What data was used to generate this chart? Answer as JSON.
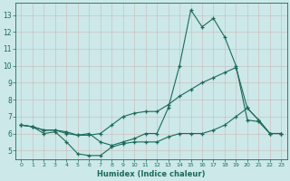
{
  "xlabel": "Humidex (Indice chaleur)",
  "xlim": [
    -0.5,
    23.5
  ],
  "ylim": [
    4.5,
    13.7
  ],
  "yticks": [
    5,
    6,
    7,
    8,
    9,
    10,
    11,
    12,
    13
  ],
  "xticks": [
    0,
    1,
    2,
    3,
    4,
    5,
    6,
    7,
    8,
    9,
    10,
    11,
    12,
    13,
    14,
    15,
    16,
    17,
    18,
    19,
    20,
    21,
    22,
    23
  ],
  "bg_color": "#cce8e8",
  "grid_color": "#bbcccc",
  "line_color": "#1a6b5a",
  "line1_x": [
    0,
    1,
    2,
    3,
    4,
    5,
    6,
    7,
    8,
    9,
    10,
    11,
    12,
    13,
    14,
    15,
    16,
    17,
    18,
    19,
    20,
    21,
    22,
    23
  ],
  "line1_y": [
    6.5,
    6.4,
    6.2,
    6.2,
    6.1,
    5.9,
    6.0,
    5.5,
    5.3,
    5.5,
    5.7,
    6.0,
    6.0,
    7.5,
    10.0,
    13.3,
    12.3,
    12.8,
    11.7,
    10.0,
    6.8,
    6.7,
    6.0,
    6.0
  ],
  "line2_x": [
    0,
    1,
    2,
    3,
    4,
    5,
    6,
    7,
    8,
    9,
    10,
    11,
    12,
    13,
    14,
    15,
    16,
    17,
    18,
    19,
    20,
    21,
    22,
    23
  ],
  "line2_y": [
    6.5,
    6.4,
    6.2,
    6.2,
    6.0,
    5.9,
    5.9,
    6.0,
    6.5,
    7.0,
    7.2,
    7.3,
    7.3,
    7.7,
    8.2,
    8.6,
    9.0,
    9.3,
    9.6,
    9.9,
    7.5,
    6.8,
    6.0,
    6.0
  ],
  "line3_x": [
    0,
    1,
    2,
    3,
    4,
    5,
    6,
    7,
    8,
    9,
    10,
    11,
    12,
    13,
    14,
    15,
    16,
    17,
    18,
    19,
    20,
    21,
    22,
    23
  ],
  "line3_y": [
    6.5,
    6.4,
    6.0,
    6.1,
    5.5,
    4.8,
    4.7,
    4.7,
    5.2,
    5.4,
    5.5,
    5.5,
    5.5,
    5.8,
    6.0,
    6.0,
    6.0,
    6.2,
    6.5,
    7.0,
    7.5,
    6.8,
    6.0,
    6.0
  ]
}
